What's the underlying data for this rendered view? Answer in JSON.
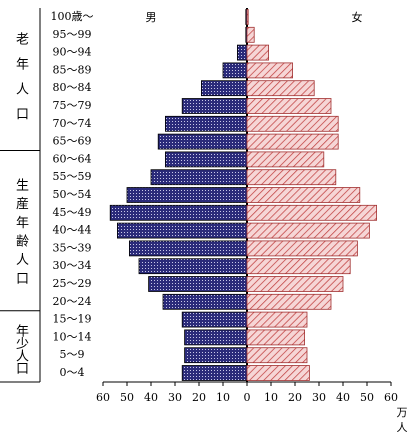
{
  "chart_data": {
    "type": "pyramid",
    "categories": [
      "100歳～",
      "95～99",
      "90～94",
      "85～89",
      "80～84",
      "75～79",
      "70～74",
      "65～69",
      "60～64",
      "55～59",
      "50～54",
      "45～49",
      "40～44",
      "35～39",
      "30～34",
      "25～29",
      "20～24",
      "15～19",
      "10～14",
      "5～9",
      "0～4"
    ],
    "series": [
      {
        "name": "男",
        "color": "#2b2b7a",
        "side": "left",
        "values": [
          0.5,
          0.5,
          4,
          10,
          19,
          27,
          34,
          37,
          34,
          40,
          50,
          57,
          54,
          49,
          45,
          41,
          35,
          27,
          26,
          26,
          27
        ]
      },
      {
        "name": "女",
        "color": "#e8a0a0",
        "side": "right",
        "values": [
          0.5,
          3,
          9,
          19,
          28,
          35,
          38,
          38,
          32,
          37,
          47,
          54,
          51,
          46,
          43,
          40,
          35,
          25,
          24,
          25,
          26
        ]
      }
    ],
    "xlim": [
      -60,
      60
    ],
    "xticks": [
      {
        "value": -60,
        "label": "60"
      },
      {
        "value": -50,
        "label": "50"
      },
      {
        "value": -40,
        "label": "40"
      },
      {
        "value": -30,
        "label": "30"
      },
      {
        "value": -20,
        "label": "20"
      },
      {
        "value": -10,
        "label": "10"
      },
      0,
      10,
      20,
      30,
      40,
      50,
      60
    ],
    "x_label_lines": [
      "万",
      "人"
    ],
    "groups": [
      {
        "label": "老年人口",
        "from": 0,
        "to": 7
      },
      {
        "label": "生産年齢人口",
        "from": 8,
        "to": 16
      },
      {
        "label": "年少人口",
        "from": 17,
        "to": 20
      }
    ]
  }
}
